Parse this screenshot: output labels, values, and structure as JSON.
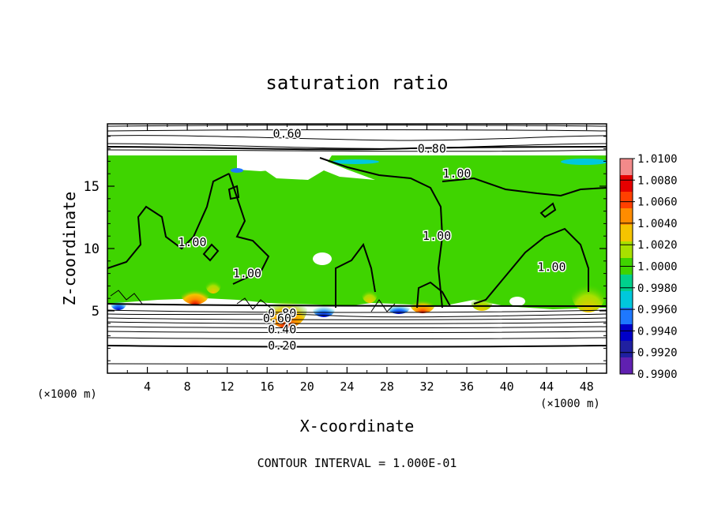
{
  "chart_data": {
    "type": "heatmap",
    "title": "saturation ratio",
    "xlabel": "X-coordinate",
    "ylabel": "Z-coordinate",
    "x_unit": "(×1000 m)",
    "y_unit": "(×1000 m)",
    "xlim": [
      0,
      50
    ],
    "ylim": [
      0,
      20
    ],
    "x_ticks": [
      "4",
      "8",
      "12",
      "16",
      "20",
      "24",
      "28",
      "32",
      "36",
      "40",
      "44",
      "48"
    ],
    "y_ticks": [
      "5",
      "10",
      "15"
    ],
    "footer": "CONTOUR INTERVAL = 1.000E-01",
    "colorbar": {
      "labels": [
        "1.0100",
        "1.0080",
        "1.0060",
        "1.0040",
        "1.0020",
        "1.0000",
        "0.9980",
        "0.9960",
        "0.9940",
        "0.9920",
        "0.9900"
      ],
      "colors": [
        "#f28a8a",
        "#e60000",
        "#ff4000",
        "#ff8c00",
        "#f5c400",
        "#a8e000",
        "#3fd400",
        "#00d08c",
        "#00c8dc",
        "#1e78ff",
        "#0000c8",
        "#2020a0",
        "#6020b0"
      ]
    },
    "contour_labels": [
      {
        "text": "0.60",
        "x": 18.0,
        "z": 19.2
      },
      {
        "text": "0.80",
        "x": 32.5,
        "z": 18.0
      },
      {
        "text": "1.00",
        "x": 35.0,
        "z": 16.0
      },
      {
        "text": "1.00",
        "x": 8.5,
        "z": 10.5
      },
      {
        "text": "1.00",
        "x": 14.0,
        "z": 8.0
      },
      {
        "text": "1.00",
        "x": 33.0,
        "z": 11.0
      },
      {
        "text": "1.00",
        "x": 44.5,
        "z": 8.5
      },
      {
        "text": "0.80",
        "x": 17.5,
        "z": 4.8
      },
      {
        "text": "0.60",
        "x": 17.0,
        "z": 4.4
      },
      {
        "text": "0.40",
        "x": 17.5,
        "z": 3.5
      },
      {
        "text": "0.20",
        "x": 17.5,
        "z": 2.2
      }
    ]
  }
}
